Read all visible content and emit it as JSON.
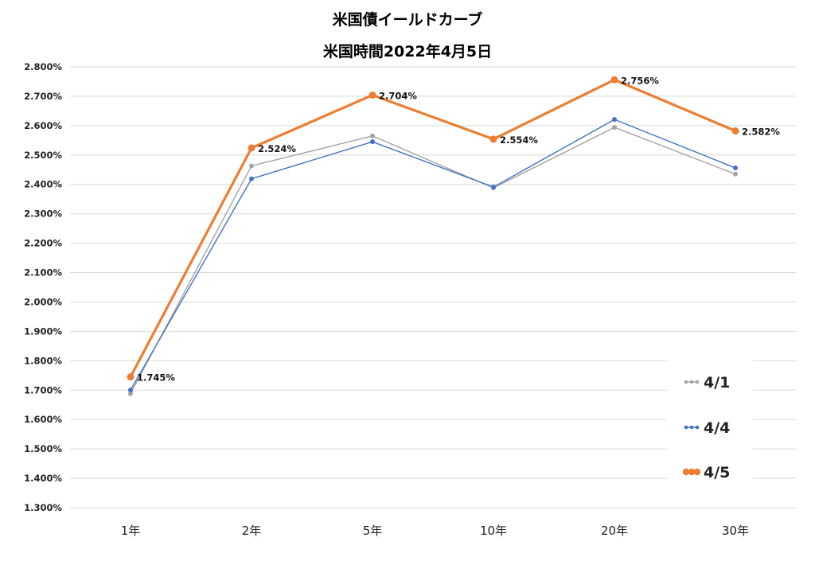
{
  "chart_data": {
    "type": "line",
    "title": "米国債イールドカーブ",
    "subtitle": "米国時間2022年4月5日",
    "categories": [
      "1年",
      "2年",
      "5年",
      "10年",
      "20年",
      "30年"
    ],
    "ylim": [
      1.3,
      2.8
    ],
    "yticks": [
      "1.300%",
      "1.400%",
      "1.500%",
      "1.600%",
      "1.700%",
      "1.800%",
      "1.900%",
      "2.000%",
      "2.100%",
      "2.200%",
      "2.300%",
      "2.400%",
      "2.500%",
      "2.600%",
      "2.700%",
      "2.800%"
    ],
    "grid": true,
    "legend_position": "bottom-right",
    "series": [
      {
        "name": "4/1",
        "color": "#a5a5a5",
        "values": [
          1.688,
          2.463,
          2.565,
          2.388,
          2.594,
          2.435
        ]
      },
      {
        "name": "4/4",
        "color": "#4472c4",
        "values": [
          1.7,
          2.419,
          2.545,
          2.391,
          2.621,
          2.456
        ]
      },
      {
        "name": "4/5",
        "color": "#ed7d31",
        "values": [
          1.745,
          2.524,
          2.704,
          2.554,
          2.756,
          2.582
        ],
        "data_labels": [
          "1.745%",
          "2.524%",
          "2.704%",
          "2.554%",
          "2.756%",
          "2.582%"
        ]
      }
    ]
  }
}
